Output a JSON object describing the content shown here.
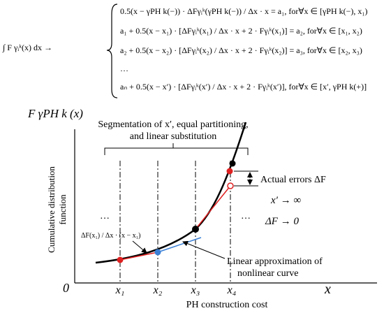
{
  "equation": {
    "lhs": "∫ F γᵢᵏ(x) dx →",
    "lines": [
      "0.5(x − γPH k(−)) · ΔFγᵢᵏ(γPH k(−)) / Δx · x = a₁,  for∀x ∈ [γPH k(−), x₁)",
      "a₁ + 0.5(x − x₁) · [ΔFγᵢᵏ(x₁) / Δx · x + 2 · Fγᵢᵏ(x₁)] = a₂,  for∀x ∈ [x₁, x₂)",
      "a₂ + 0.5(x − x₂) · [ΔFγᵢᵏ(x₂) / Δx · x + 2 · Fγᵢᵏ(x₂)] = a₃,  for∀x ∈ [x₂, x₃)",
      "…",
      "aₙ + 0.5(x − x′) · [ΔFγᵢᵏ(x′) / Δx · x + 2 · Fγᵢᵏ(x′)],  for∀x ∈ [x′, γPH k(+)]"
    ]
  },
  "y_function_label": "F γPH k (x)",
  "y_axis_label": [
    "Cumulative distribution",
    "function"
  ],
  "x_axis_label": "PH construction cost",
  "origin_label": "0",
  "x_arrow_label": "x",
  "x_ticks": [
    "x₁",
    "x₂",
    "x₃",
    "x₄"
  ],
  "segmentation_label": [
    "Segmentation of x′, equal partitioning,",
    "and linear substitution"
  ],
  "error_label": "Actual errors ΔF",
  "limit_labels": [
    "x′ → ∞",
    "ΔF → 0"
  ],
  "ellipses": [
    "…",
    "…"
  ],
  "slope_label": "ΔF(x₁) / Δx · (x − x₁)",
  "approx_label": [
    "Linear approximation of",
    "nonlinear curve"
  ]
}
